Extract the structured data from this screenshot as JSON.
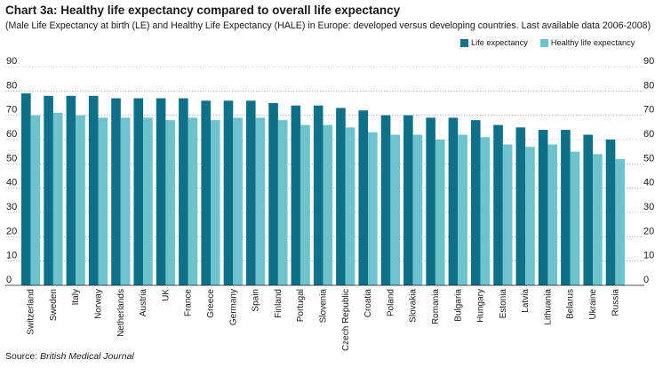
{
  "title": "Chart 3a: Healthy life expectancy compared to overall life expectancy",
  "subtitle": "(Male Life Expectancy at birth (LE) and Healthy Life Expectancy (HALE) in Europe: developed versus developing countries. Last available data 2006-2008)",
  "source_prefix": "Source: ",
  "source_name": "British Medical Journal",
  "colors": {
    "le": "#0f7189",
    "hale": "#6cc3cc",
    "grid": "#8a8a8a"
  },
  "chart_data": {
    "type": "bar",
    "categories": [
      "Switzerland",
      "Sweden",
      "Italy",
      "Norway",
      "Netherlands",
      "Austria",
      "UK",
      "France",
      "Greece",
      "Germany",
      "Spain",
      "Finland",
      "Portugal",
      "Slovenia",
      "Czech Republic",
      "Croatia",
      "Poland",
      "Slovakia",
      "Romania",
      "Bulgaria",
      "Hungary",
      "Estonia",
      "Latvia",
      "Lithuania",
      "Belarus",
      "Ukraine",
      "Russia"
    ],
    "series": [
      {
        "name": "Life expectancy",
        "values": [
          79,
          78,
          78,
          78,
          77,
          77,
          77,
          77,
          76,
          76,
          76,
          75,
          74,
          74,
          73,
          72,
          70,
          70,
          69,
          69,
          68,
          66,
          65,
          64,
          64,
          62,
          60
        ]
      },
      {
        "name": "Healthy life expectancy",
        "values": [
          70,
          71,
          70,
          69,
          69,
          69,
          68,
          69,
          68,
          69,
          69,
          68,
          66,
          66,
          65,
          63,
          62,
          62,
          60,
          62,
          61,
          58,
          57,
          58,
          55,
          54,
          52
        ]
      }
    ],
    "ylim": [
      0,
      90
    ],
    "yticks": [
      0,
      10,
      20,
      30,
      40,
      50,
      60,
      70,
      80,
      90
    ],
    "grid": true,
    "legend": "top-right"
  }
}
